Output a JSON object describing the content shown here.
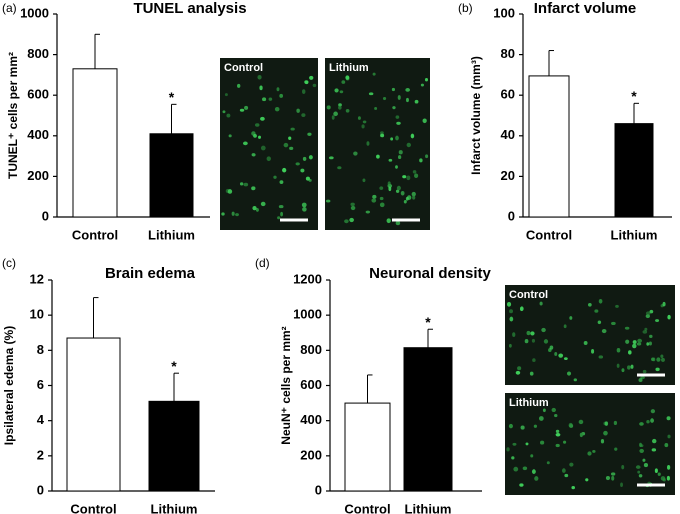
{
  "chart_data": [
    {
      "type": "bar",
      "panel_label": "(a)",
      "title": "TUNEL analysis",
      "y_label": "TUNEL⁺ cells per mm²",
      "categories": [
        "Control",
        "Lithium"
      ],
      "values": [
        730,
        410
      ],
      "errors": [
        170,
        145
      ],
      "annotations": [
        null,
        "*"
      ],
      "colors": [
        "#ffffff",
        "#000000"
      ],
      "ylim": [
        0,
        1000
      ],
      "yticks": [
        0,
        200,
        400,
        600,
        800,
        1000
      ],
      "images": [
        {
          "label": "Control"
        },
        {
          "label": "Lithium"
        }
      ]
    },
    {
      "type": "bar",
      "panel_label": "(b)",
      "title": "Infarct volume",
      "y_label": "Infarct volume (mm³)",
      "categories": [
        "Control",
        "Lithium"
      ],
      "values": [
        69.5,
        46
      ],
      "errors": [
        12.5,
        10
      ],
      "annotations": [
        null,
        "*"
      ],
      "colors": [
        "#ffffff",
        "#000000"
      ],
      "ylim": [
        0,
        100
      ],
      "yticks": [
        0,
        20,
        40,
        60,
        80,
        100
      ]
    },
    {
      "type": "bar",
      "panel_label": "(c)",
      "title": "Brain edema",
      "y_label": "Ipsilateral edema (%)",
      "categories": [
        "Control",
        "Lithium"
      ],
      "values": [
        8.7,
        5.1
      ],
      "errors": [
        2.3,
        1.6
      ],
      "annotations": [
        null,
        "*"
      ],
      "colors": [
        "#ffffff",
        "#000000"
      ],
      "ylim": [
        0,
        12
      ],
      "yticks": [
        0,
        2,
        4,
        6,
        8,
        10,
        12
      ]
    },
    {
      "type": "bar",
      "panel_label": "(d)",
      "title": "Neuronal density",
      "y_label": "NeuN⁺ cells per mm²",
      "categories": [
        "Control",
        "Lithium"
      ],
      "values": [
        500,
        815
      ],
      "errors": [
        160,
        105
      ],
      "annotations": [
        null,
        "*"
      ],
      "colors": [
        "#ffffff",
        "#000000"
      ],
      "ylim": [
        0,
        1200
      ],
      "yticks": [
        0,
        200,
        400,
        600,
        800,
        1000,
        1200
      ],
      "images": [
        {
          "label": "Control"
        },
        {
          "label": "Lithium"
        }
      ]
    }
  ]
}
